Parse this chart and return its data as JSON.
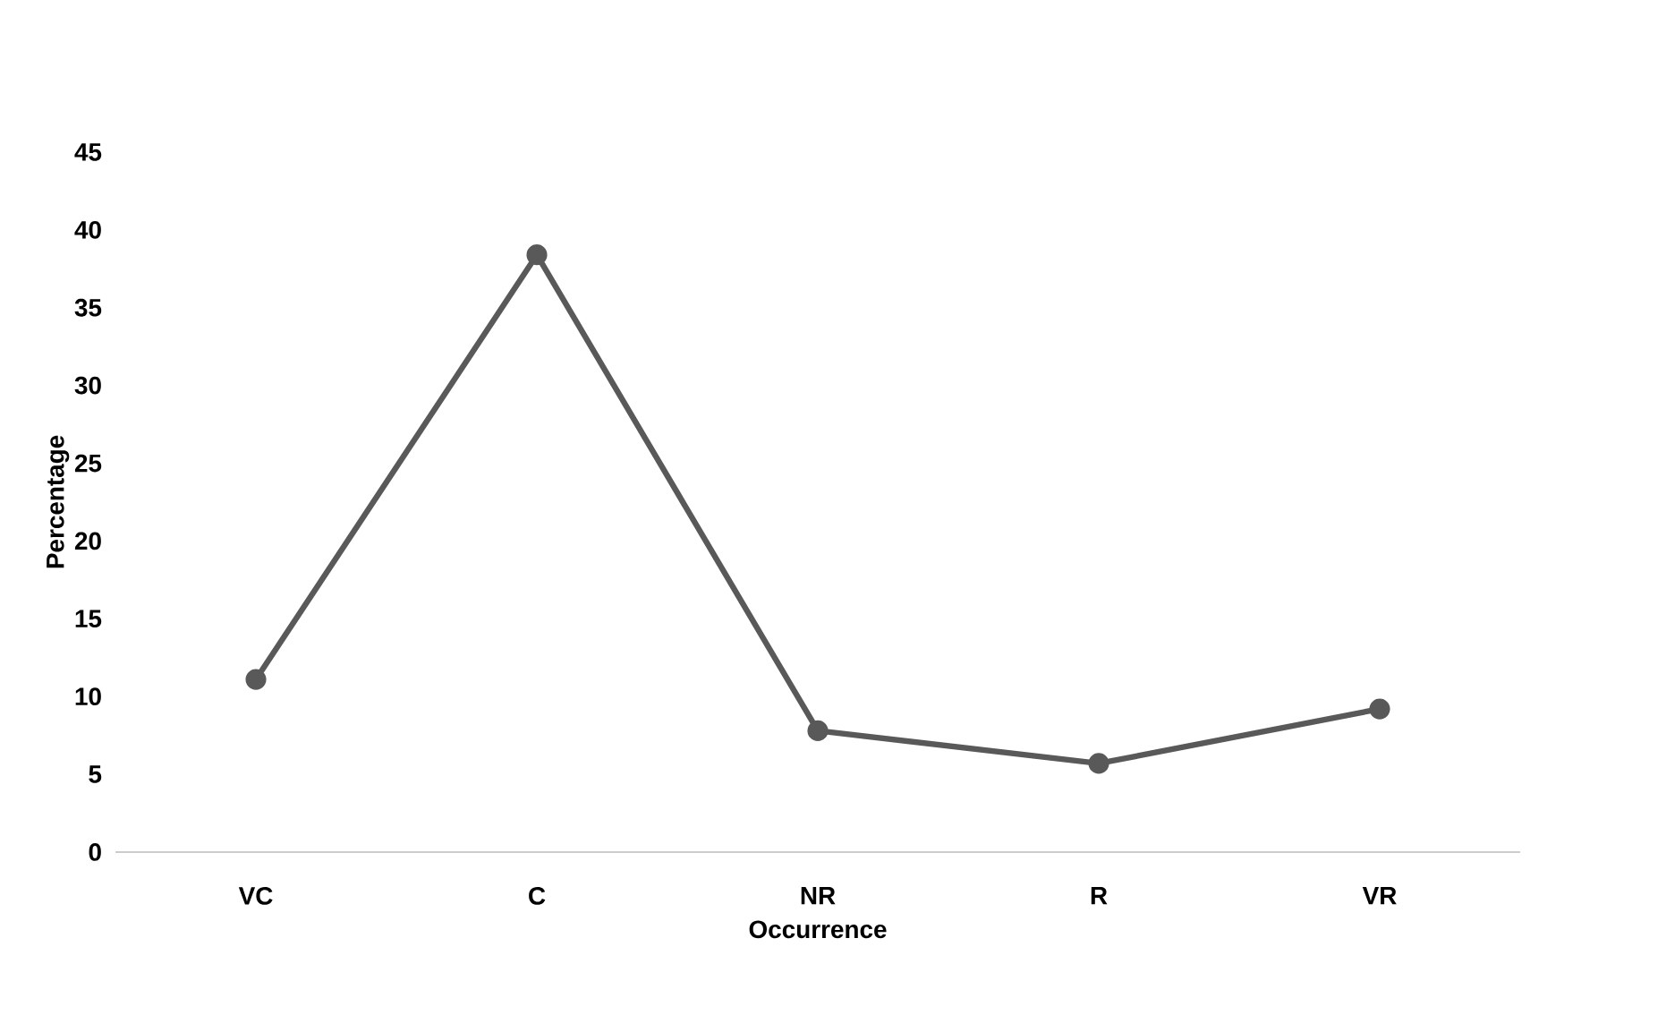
{
  "chart_data": {
    "type": "line",
    "xlabel": "Occurrence",
    "ylabel": "Percentage",
    "categories": [
      "VC",
      "C",
      "NR",
      "R",
      "VR"
    ],
    "series": [
      {
        "color": "#595959",
        "values": [
          11.1,
          38.4,
          7.8,
          5.7,
          9.2
        ]
      }
    ],
    "ylim": [
      0,
      45
    ],
    "yticks": [
      0,
      5,
      10,
      15,
      20,
      25,
      30,
      35,
      40,
      45
    ],
    "grid": false,
    "marker": "circle",
    "line_style": "solid"
  }
}
